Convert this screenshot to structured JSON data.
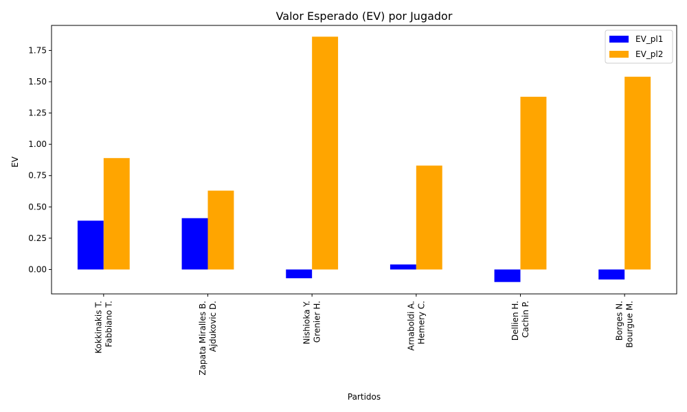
{
  "chart_data": {
    "type": "bar",
    "title": "Valor Esperado (EV) por Jugador",
    "xlabel": "Partidos",
    "ylabel": "EV",
    "categories": [
      [
        "Kokkinakis T.",
        "Fabbiano T."
      ],
      [
        "Zapata Miralles B.",
        "Ajdukovic D."
      ],
      [
        "Nishioka Y.",
        "Grenier H."
      ],
      [
        "Arnaboldi A.",
        "Hemery C."
      ],
      [
        "Dellien H.",
        "Cachin P."
      ],
      [
        "Borges N.",
        "Bourgue M."
      ]
    ],
    "series": [
      {
        "name": "EV_pl1",
        "color": "#0000ff",
        "values": [
          0.39,
          0.41,
          -0.07,
          0.04,
          -0.1,
          -0.08
        ]
      },
      {
        "name": "EV_pl2",
        "color": "#ffa500",
        "values": [
          0.89,
          0.63,
          1.86,
          0.83,
          1.38,
          1.54
        ]
      }
    ],
    "ylim": [
      -0.195,
      1.95
    ],
    "yticks": [
      "0.00",
      "0.25",
      "0.50",
      "0.75",
      "1.00",
      "1.25",
      "1.50",
      "1.75"
    ],
    "grid": false,
    "legend_position": "top-right"
  }
}
